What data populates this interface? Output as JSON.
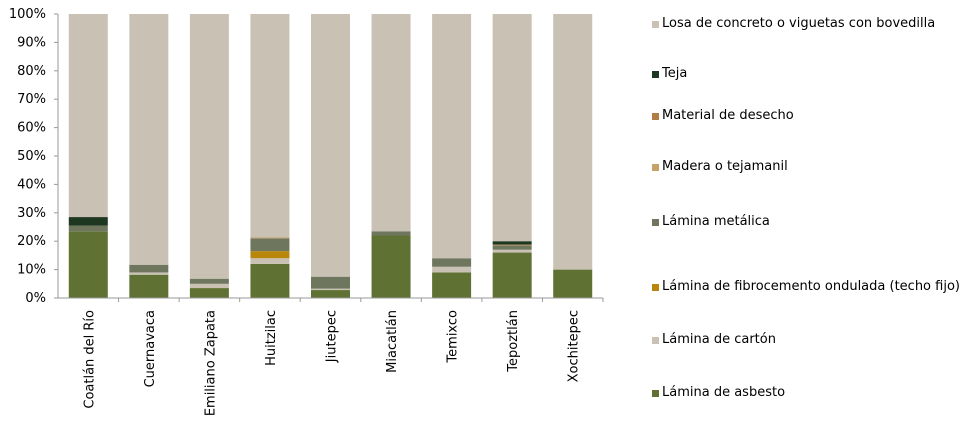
{
  "chart_data": {
    "type": "bar",
    "stacked": true,
    "percent": true,
    "ylim": [
      0,
      100
    ],
    "ytick_labels": [
      "0%",
      "10%",
      "20%",
      "30%",
      "40%",
      "50%",
      "60%",
      "70%",
      "80%",
      "90%",
      "100%"
    ],
    "categories": [
      "Coatlán del Río",
      "Cuernavaca",
      "Emiliano Zapata",
      "Huitzilac",
      "Jiutepec",
      "Miacatlán",
      "Temixco",
      "Tepoztlán",
      "Xochitepec"
    ],
    "series": [
      {
        "name": "Lámina de asbesto",
        "color": "#5f7233",
        "values": [
          23.5,
          8.2,
          3.5,
          12.0,
          2.8,
          22.0,
          9.0,
          16.0,
          10.0
        ]
      },
      {
        "name": "Lámina de cartón",
        "color": "#c9c1b4",
        "values": [
          0,
          0.8,
          1.5,
          2.0,
          0.5,
          0,
          2.0,
          1.0,
          0
        ]
      },
      {
        "name": "Lámina de fibrocemento ondulada (techo fijo)",
        "color": "#b8860b",
        "values": [
          0,
          0,
          0,
          2.5,
          0,
          0,
          0,
          0,
          0
        ]
      },
      {
        "name": "Lámina metálica",
        "color": "#6e765e",
        "values": [
          2.0,
          2.7,
          1.8,
          4.5,
          4.2,
          1.5,
          3.0,
          1.5,
          0
        ]
      },
      {
        "name": "Madera o tejamanil",
        "color": "#c8a06a",
        "values": [
          0,
          0,
          0,
          0.3,
          0,
          0,
          0,
          0.3,
          0
        ]
      },
      {
        "name": "Material de desecho",
        "color": "#b07d45",
        "values": [
          0,
          0,
          0,
          0,
          0,
          0,
          0,
          0,
          0
        ]
      },
      {
        "name": "Teja",
        "color": "#1e3720",
        "values": [
          3.0,
          0,
          0,
          0,
          0,
          0,
          0,
          1.2,
          0
        ]
      },
      {
        "name": "Losa de concreto o viguetas con bovedilla",
        "color": "#c9c1b4",
        "values": [
          71.5,
          88.3,
          93.2,
          78.7,
          92.5,
          76.5,
          86.0,
          80.0,
          90.0
        ]
      }
    ],
    "legend_order": [
      7,
      6,
      5,
      4,
      3,
      2,
      1,
      0
    ],
    "legend_position": "right",
    "grid": false
  }
}
